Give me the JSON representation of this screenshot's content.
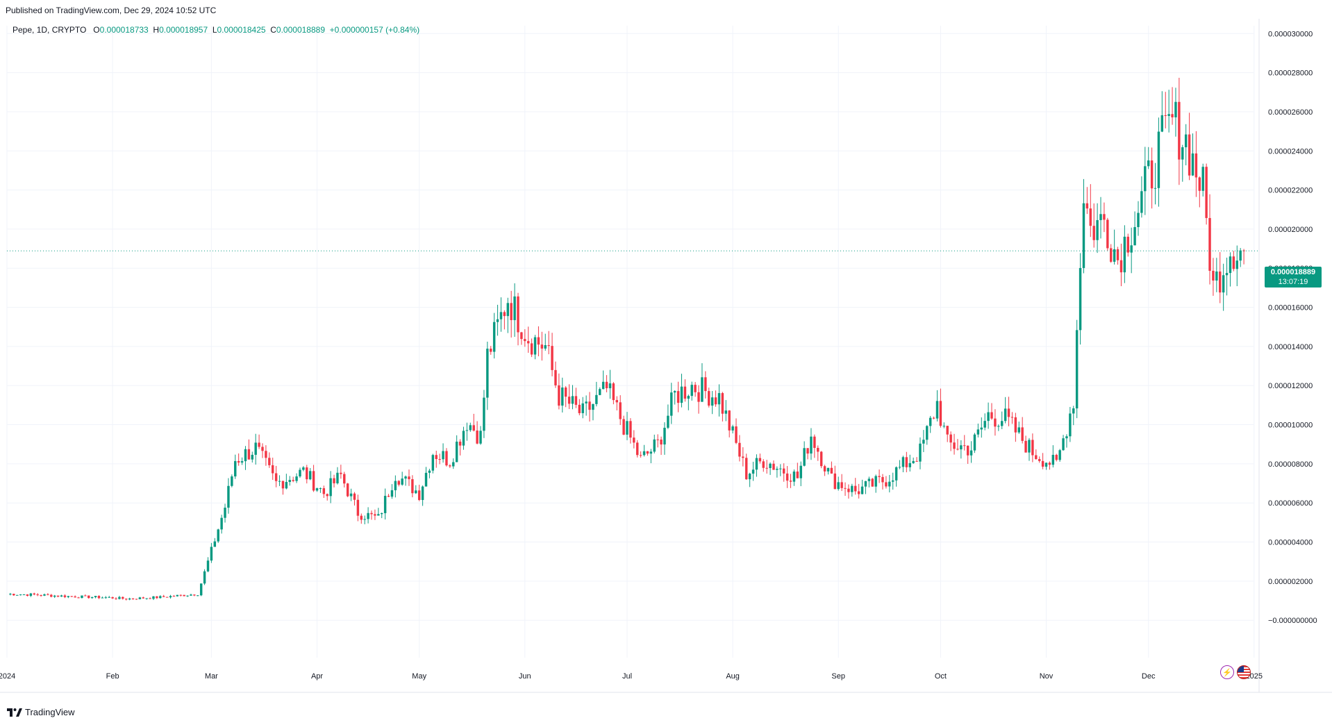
{
  "header": {
    "published": "Published on TradingView.com, Dec 29, 2024 10:52 UTC"
  },
  "legend": {
    "pair": "Pepe, 1D, CRYPTO",
    "open_key": "O",
    "open": "0.000018733",
    "high_key": "H",
    "high": "0.000018957",
    "low_key": "L",
    "low": "0.000018425",
    "close_key": "C",
    "close": "0.000018889",
    "change": "+0.000000157 (+0.84%)"
  },
  "last_price": {
    "value": "0.000018889",
    "countdown": "13:07:19"
  },
  "footer": {
    "brand": "TradingView"
  },
  "colors": {
    "up": "#089981",
    "down": "#f23645",
    "grid": "#f0f3fa",
    "axis_text": "#131722",
    "price_line": "#089981"
  },
  "icons": [
    "flash-icon",
    "us-flag-icon",
    "tradingview-logo-icon"
  ],
  "chart_data": {
    "type": "candlestick",
    "x_unit": "day",
    "x_range": [
      "2024-01-01",
      "2024-12-29"
    ],
    "ylim": [
      -1e-06,
      3.1e-05
    ],
    "y_ticks": [
      {
        "value": 3e-05,
        "label": "0.000030000"
      },
      {
        "value": 2.8e-05,
        "label": "0.000028000"
      },
      {
        "value": 2.6e-05,
        "label": "0.000026000"
      },
      {
        "value": 2.4e-05,
        "label": "0.000024000"
      },
      {
        "value": 2.2e-05,
        "label": "0.000022000"
      },
      {
        "value": 2e-05,
        "label": "0.000020000"
      },
      {
        "value": 1.8e-05,
        "label": "0.000018000"
      },
      {
        "value": 1.6e-05,
        "label": "0.000016000"
      },
      {
        "value": 1.4e-05,
        "label": "0.000014000"
      },
      {
        "value": 1.2e-05,
        "label": "0.000012000"
      },
      {
        "value": 1e-05,
        "label": "0.000010000"
      },
      {
        "value": 8e-06,
        "label": "0.000008000"
      },
      {
        "value": 6e-06,
        "label": "0.000006000"
      },
      {
        "value": 4e-06,
        "label": "0.000004000"
      },
      {
        "value": 2e-06,
        "label": "0.000002000"
      },
      {
        "value": 0.0,
        "label": "−0.000000000"
      }
    ],
    "x_ticks": [
      {
        "date": "2024-01-01",
        "label": "2024"
      },
      {
        "date": "2024-02-01",
        "label": "Feb"
      },
      {
        "date": "2024-03-01",
        "label": "Mar"
      },
      {
        "date": "2024-04-01",
        "label": "Apr"
      },
      {
        "date": "2024-05-01",
        "label": "May"
      },
      {
        "date": "2024-06-01",
        "label": "Jun"
      },
      {
        "date": "2024-07-01",
        "label": "Jul"
      },
      {
        "date": "2024-08-01",
        "label": "Aug"
      },
      {
        "date": "2024-09-01",
        "label": "Sep"
      },
      {
        "date": "2024-10-01",
        "label": "Oct"
      },
      {
        "date": "2024-11-01",
        "label": "Nov"
      },
      {
        "date": "2024-12-01",
        "label": "Dec"
      },
      {
        "date": "2025-01-01",
        "label": "2025"
      }
    ],
    "grid": true,
    "last_close_line": 1.8889e-05,
    "closes": [
      {
        "date": "2024-01-01",
        "close": 1.35e-06
      },
      {
        "date": "2024-01-10",
        "close": 1.3e-06
      },
      {
        "date": "2024-01-20",
        "close": 1.22e-06
      },
      {
        "date": "2024-01-31",
        "close": 1.16e-06
      },
      {
        "date": "2024-02-05",
        "close": 1.1e-06
      },
      {
        "date": "2024-02-15",
        "close": 1.18e-06
      },
      {
        "date": "2024-02-26",
        "close": 1.35e-06
      },
      {
        "date": "2024-02-29",
        "close": 3e-06
      },
      {
        "date": "2024-03-05",
        "close": 5.8e-06
      },
      {
        "date": "2024-03-08",
        "close": 8.2e-06
      },
      {
        "date": "2024-03-14",
        "close": 8.8e-06
      },
      {
        "date": "2024-03-20",
        "close": 7e-06
      },
      {
        "date": "2024-03-28",
        "close": 7.6e-06
      },
      {
        "date": "2024-04-03",
        "close": 6.5e-06
      },
      {
        "date": "2024-04-08",
        "close": 7.4e-06
      },
      {
        "date": "2024-04-13",
        "close": 5.5e-06
      },
      {
        "date": "2024-04-19",
        "close": 5.2e-06
      },
      {
        "date": "2024-04-24",
        "close": 7.5e-06
      },
      {
        "date": "2024-05-01",
        "close": 6.5e-06
      },
      {
        "date": "2024-05-05",
        "close": 8.6e-06
      },
      {
        "date": "2024-05-10",
        "close": 8.2e-06
      },
      {
        "date": "2024-05-15",
        "close": 1.02e-05
      },
      {
        "date": "2024-05-19",
        "close": 9.4e-06
      },
      {
        "date": "2024-05-21",
        "close": 1.35e-05
      },
      {
        "date": "2024-05-27",
        "close": 1.65e-05
      },
      {
        "date": "2024-06-02",
        "close": 1.45e-05
      },
      {
        "date": "2024-06-07",
        "close": 1.4e-05
      },
      {
        "date": "2024-06-11",
        "close": 1.15e-05
      },
      {
        "date": "2024-06-18",
        "close": 1.05e-05
      },
      {
        "date": "2024-06-25",
        "close": 1.18e-05
      },
      {
        "date": "2024-07-05",
        "close": 8.2e-06
      },
      {
        "date": "2024-07-10",
        "close": 9e-06
      },
      {
        "date": "2024-07-15",
        "close": 1.15e-05
      },
      {
        "date": "2024-07-20",
        "close": 1.2e-05
      },
      {
        "date": "2024-07-28",
        "close": 1.14e-05
      },
      {
        "date": "2024-08-05",
        "close": 7.5e-06
      },
      {
        "date": "2024-08-10",
        "close": 8.2e-06
      },
      {
        "date": "2024-08-20",
        "close": 7.3e-06
      },
      {
        "date": "2024-08-24",
        "close": 9.5e-06
      },
      {
        "date": "2024-08-30",
        "close": 7.2e-06
      },
      {
        "date": "2024-09-06",
        "close": 6.6e-06
      },
      {
        "date": "2024-09-15",
        "close": 7.2e-06
      },
      {
        "date": "2024-09-25",
        "close": 8.6e-06
      },
      {
        "date": "2024-09-30",
        "close": 1.11e-05
      },
      {
        "date": "2024-10-03",
        "close": 9e-06
      },
      {
        "date": "2024-10-10",
        "close": 8.8e-06
      },
      {
        "date": "2024-10-15",
        "close": 1.05e-05
      },
      {
        "date": "2024-10-20",
        "close": 1.03e-05
      },
      {
        "date": "2024-10-28",
        "close": 8.6e-06
      },
      {
        "date": "2024-11-04",
        "close": 7.9e-06
      },
      {
        "date": "2024-11-09",
        "close": 1.13e-05
      },
      {
        "date": "2024-11-12",
        "close": 2.2e-05
      },
      {
        "date": "2024-11-14",
        "close": 2e-05
      },
      {
        "date": "2024-11-18",
        "close": 2.05e-05
      },
      {
        "date": "2024-11-22",
        "close": 1.85e-05
      },
      {
        "date": "2024-11-28",
        "close": 2.1e-05
      },
      {
        "date": "2024-12-04",
        "close": 2.4e-05
      },
      {
        "date": "2024-12-08",
        "close": 2.55e-05
      },
      {
        "date": "2024-12-12",
        "close": 2.45e-05
      },
      {
        "date": "2024-12-17",
        "close": 2.2e-05
      },
      {
        "date": "2024-12-20",
        "close": 1.7e-05
      },
      {
        "date": "2024-12-25",
        "close": 1.9e-05
      },
      {
        "date": "2024-12-29",
        "close": 1.8889e-05
      }
    ]
  }
}
